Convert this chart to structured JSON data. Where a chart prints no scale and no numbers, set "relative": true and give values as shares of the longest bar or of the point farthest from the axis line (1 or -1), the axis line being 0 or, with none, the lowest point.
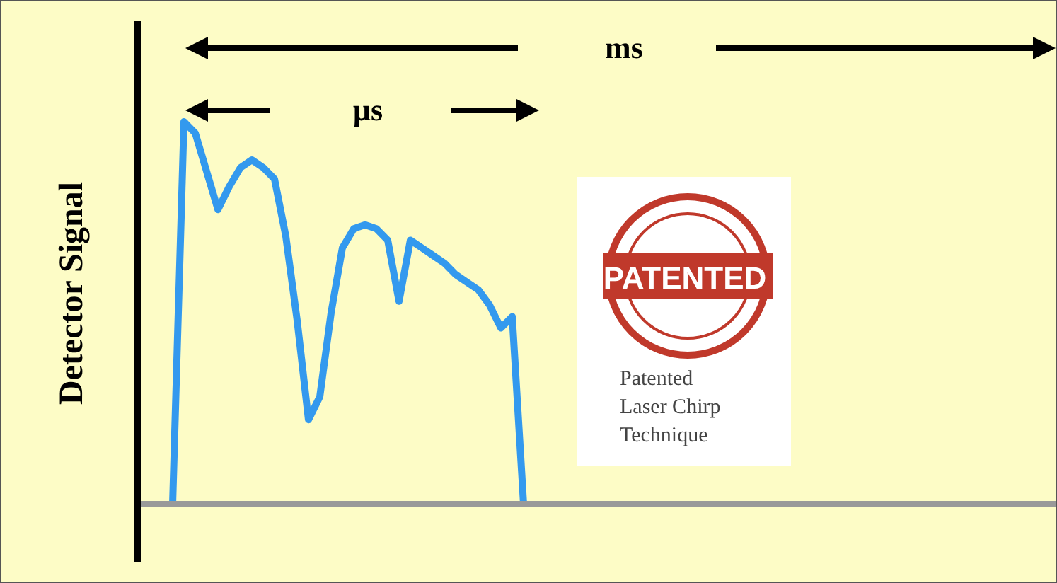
{
  "chart_data": {
    "type": "line",
    "relative": true,
    "tick_labels": false,
    "ylabel": "Detector Signal",
    "annotations": [
      "ms",
      "µs",
      "PATENTED",
      "Patented\nLaser Chirp\nTechnique"
    ],
    "categories": [
      null,
      null,
      null,
      null,
      null,
      null,
      null,
      null,
      null,
      null,
      null,
      null,
      null,
      null,
      null,
      null,
      null,
      null,
      null,
      null,
      null,
      null,
      null,
      null,
      null,
      null,
      null,
      null,
      null,
      null,
      null,
      null,
      null,
      null,
      null,
      null,
      null,
      null,
      null,
      null,
      null,
      null,
      null,
      null,
      null,
      null,
      null,
      null,
      null,
      null,
      null,
      null,
      null,
      null,
      null,
      null,
      null,
      null,
      null,
      null,
      null,
      null,
      null,
      null,
      null,
      null,
      null,
      null,
      null,
      null,
      null,
      null,
      null,
      null,
      null,
      null,
      null,
      null,
      null,
      null,
      null,
      null
    ],
    "series": [
      {
        "color": "#3399ee",
        "values": [
          null,
          null,
          null,
          0,
          1,
          0.97,
          0.87,
          0.77,
          0.83,
          0.88,
          0.9,
          0.88,
          0.85,
          0.7,
          0.48,
          0.22,
          0.28,
          0.5,
          0.67,
          0.72,
          0.73,
          0.72,
          0.69,
          0.53,
          0.69,
          0.67,
          0.65,
          0.63,
          0.6,
          0.58,
          0.56,
          0.52,
          0.46,
          0.49,
          0,
          null,
          null,
          null,
          null,
          null,
          null,
          null,
          null,
          null,
          null,
          null,
          null,
          null,
          null,
          null,
          null,
          null,
          null,
          null,
          null,
          null,
          null,
          null,
          null,
          null,
          null,
          null,
          null,
          null,
          null,
          null,
          null,
          null,
          null,
          null,
          null,
          null,
          null,
          null,
          null,
          null,
          null,
          null,
          null,
          null,
          null,
          null
        ]
      }
    ],
    "ref_lines": [
      {
        "axis": "y",
        "value": 0,
        "color": "#999999"
      }
    ]
  }
}
